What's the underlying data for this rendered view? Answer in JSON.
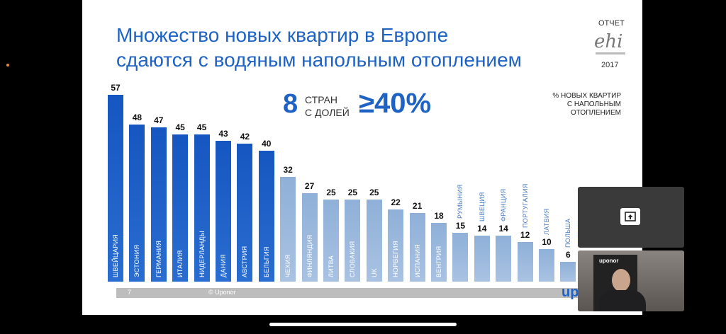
{
  "slide": {
    "title_line1": "Множество новых квартир в Европе",
    "title_line2": "сдаются с водяным напольным отоплением",
    "report_label": "ОТЧЕТ",
    "report_logo": "ehi",
    "report_year": "2017",
    "highlight_number": "8",
    "highlight_text1": "СТРАН",
    "highlight_text2": "С ДОЛЕЙ",
    "highlight_percent": "≥40%",
    "legend_line1": "% НОВЫХ КВАРТИР",
    "legend_line2": "С НАПОЛЬНЫМ",
    "legend_line3": "ОТОПЛЕНИЕМ",
    "page_number": "7",
    "copyright": "© Uponor",
    "brand": "upo"
  },
  "chart_data": {
    "type": "bar",
    "categories": [
      "ШВЕЙЦАРИЯ",
      "ЭСТОНИЯ",
      "ГЕРМАНИЯ",
      "ИТАЛИЯ",
      "НИДЕРЛАНДЫ",
      "ДАНИЯ",
      "АВСТРИЯ",
      "БЕЛЬГИЯ",
      "ЧЕХИЯ",
      "ФИНЛЯНДИЯ",
      "ЛИТВА",
      "СЛОВАКИЯ",
      "UK",
      "НОРВЕГИЯ",
      "ИСПАНИЯ",
      "ВЕНГРИЯ",
      "РУМЫНИЯ",
      "ШВЕЦИЯ",
      "ФРАНЦИЯ",
      "ПОРТУГАЛИЯ",
      "ЛАТВИЯ",
      "ПОЛЬША"
    ],
    "values": [
      57,
      48,
      47,
      45,
      45,
      43,
      42,
      40,
      32,
      27,
      25,
      25,
      25,
      22,
      21,
      18,
      15,
      14,
      14,
      12,
      10,
      6
    ],
    "highlight_threshold": 40,
    "colors": {
      "highlight": "#1556c0",
      "other": "#8fb0d8"
    }
  },
  "overlay": {
    "share_icon": "screen-share-icon",
    "video_book_text": "uponor"
  }
}
